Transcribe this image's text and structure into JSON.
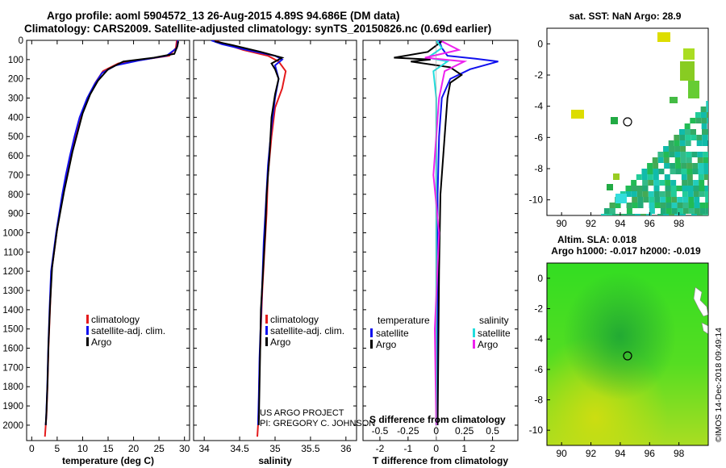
{
  "header": {
    "title_line1": "Argo profile: aoml 5904572_13 26-Aug-2015 4.89S 94.686E (DM data)",
    "title_line2": "Climatology: CARS2009. Satellite-adjusted climatology: synTS_20150826.nc (0.69d earlier)"
  },
  "credits": {
    "project": "US ARGO PROJECT",
    "pi": "PI: GREGORY C. JOHNSON",
    "imos": "©IMOS 14-Dec-2018 09:49:14"
  },
  "colors": {
    "climatology": "#e41a1c",
    "satellite": "#1010ee",
    "argo": "#000000",
    "salinity_satellite": "#22dddd",
    "salinity_argo": "#ee22ee"
  },
  "chart_data": [
    {
      "type": "line",
      "name": "temperature-profile",
      "xlabel": "temperature (deg C)",
      "ylabel": "",
      "xlim": [
        -1,
        31
      ],
      "ylim": [
        2080,
        0
      ],
      "xticks": [
        0,
        5,
        10,
        15,
        20,
        25,
        30
      ],
      "xtick_labels": [
        "0",
        "5",
        "10",
        "15",
        "20",
        "25",
        "30"
      ],
      "yticks": [
        0,
        100,
        200,
        300,
        400,
        500,
        600,
        700,
        800,
        900,
        1000,
        1100,
        1200,
        1300,
        1400,
        1500,
        1600,
        1700,
        1800,
        1900,
        2000
      ],
      "ytick_labels": [
        "0",
        "100",
        "200",
        "300",
        "400",
        "500",
        "600",
        "700",
        "800",
        "900",
        "1000",
        "1100",
        "1200",
        "1300",
        "1400",
        "1500",
        "1600",
        "1700",
        "1800",
        "1900",
        "2000"
      ],
      "legend": [
        "climatology",
        "satellite-adj. clim.",
        "Argo"
      ],
      "series": [
        {
          "name": "climatology",
          "color": "#e41a1c",
          "x": [
            28.5,
            28.3,
            27.0,
            22.0,
            17.0,
            14.0,
            12.5,
            11.0,
            9.5,
            8.5,
            7.6,
            6.8,
            6.1,
            5.5,
            4.9,
            4.4,
            3.9,
            3.6,
            3.3,
            3.1,
            2.9,
            2.75,
            2.6
          ],
          "y": [
            0,
            40,
            80,
            100,
            120,
            160,
            220,
            300,
            400,
            500,
            600,
            700,
            800,
            900,
            1000,
            1100,
            1200,
            1400,
            1600,
            1800,
            1950,
            2000,
            2060
          ]
        },
        {
          "name": "satellite-adj. clim.",
          "color": "#1010ee",
          "x": [
            28.7,
            28.5,
            26.5,
            21.0,
            16.5,
            13.8,
            12.3,
            10.9,
            9.4,
            8.4,
            7.5,
            6.7,
            6.0,
            5.4,
            4.8,
            4.3,
            3.8,
            3.5,
            3.25,
            3.05,
            2.85,
            2.75
          ],
          "y": [
            0,
            40,
            80,
            105,
            130,
            170,
            230,
            300,
            400,
            500,
            600,
            700,
            800,
            900,
            1000,
            1100,
            1200,
            1400,
            1600,
            1800,
            1950,
            2000
          ]
        },
        {
          "name": "Argo",
          "color": "#000000",
          "x": [
            28.8,
            28.6,
            28.0,
            24.0,
            18.0,
            15.0,
            13.0,
            11.5,
            10.0,
            9.0,
            8.0,
            7.2,
            6.4,
            5.7,
            5.0,
            4.5,
            4.0,
            3.6,
            3.3,
            3.1,
            2.9,
            2.75
          ],
          "y": [
            5,
            30,
            70,
            90,
            110,
            150,
            210,
            280,
            380,
            480,
            580,
            680,
            780,
            880,
            980,
            1080,
            1180,
            1380,
            1580,
            1780,
            1930,
            2000
          ]
        }
      ]
    },
    {
      "type": "line",
      "name": "salinity-profile",
      "xlabel": "salinity",
      "xlim": [
        33.85,
        36.15
      ],
      "ylim": [
        2080,
        0
      ],
      "xticks": [
        34,
        34.5,
        35,
        35.5,
        36
      ],
      "xtick_labels": [
        "34",
        "34.5",
        "35",
        "35.5",
        "36"
      ],
      "legend": [
        "climatology",
        "satellite-adj. clim.",
        "Argo"
      ],
      "series": [
        {
          "name": "climatology",
          "color": "#e41a1c",
          "x": [
            34.15,
            34.3,
            34.55,
            34.9,
            35.05,
            35.15,
            35.1,
            35.0,
            34.95,
            34.9,
            34.88,
            34.85,
            34.82,
            34.8,
            34.78,
            34.77,
            34.76,
            34.75
          ],
          "y": [
            0,
            20,
            50,
            80,
            110,
            160,
            250,
            350,
            500,
            700,
            900,
            1100,
            1300,
            1500,
            1700,
            1900,
            2000,
            2060
          ]
        },
        {
          "name": "satellite-adj. clim.",
          "color": "#1010ee",
          "x": [
            34.1,
            34.25,
            34.6,
            35.0,
            35.1,
            35.0,
            35.05,
            35.0,
            34.95,
            34.9,
            34.87,
            34.84,
            34.82,
            34.8,
            34.78,
            34.77,
            34.76
          ],
          "y": [
            0,
            20,
            50,
            80,
            100,
            130,
            200,
            300,
            450,
            650,
            850,
            1050,
            1250,
            1450,
            1650,
            1850,
            2000
          ]
        },
        {
          "name": "Argo",
          "color": "#000000",
          "x": [
            34.15,
            34.4,
            34.8,
            35.1,
            34.95,
            35.0,
            35.05,
            35.0,
            34.95,
            34.92,
            34.88,
            34.86,
            34.83,
            34.8,
            34.79,
            34.78,
            34.77
          ],
          "y": [
            5,
            25,
            60,
            90,
            120,
            150,
            200,
            280,
            400,
            600,
            800,
            1000,
            1200,
            1400,
            1600,
            1800,
            2000
          ]
        }
      ]
    },
    {
      "type": "line",
      "name": "difference-profile",
      "xlabel": "T difference from climatology",
      "xlabel_top": "S difference from climatology",
      "xlim": [
        -2.6,
        2.9
      ],
      "ylim": [
        2080,
        0
      ],
      "xticks": [
        -2,
        -1,
        0,
        1,
        2
      ],
      "xtick_labels": [
        "-2",
        "-1",
        "0",
        "1",
        "2"
      ],
      "top_tick_labels": [
        "-0.5",
        "-0.25",
        "0",
        "0.25",
        "0.5"
      ],
      "top_tick_positions": [
        -2,
        -1,
        0,
        1,
        2
      ],
      "legend_temperature_title": "temperature",
      "legend_salinity_title": "salinity",
      "legend": [
        "satellite",
        "Argo",
        "satellite",
        "Argo"
      ],
      "series": [
        {
          "name": "T satellite",
          "color": "#1010ee",
          "x": [
            0.1,
            0.2,
            0.4,
            1.4,
            2.2,
            1.2,
            0.5,
            0.2,
            0.1,
            0.05,
            0.05,
            0.05,
            0.05
          ],
          "y": [
            0,
            40,
            80,
            95,
            110,
            150,
            200,
            300,
            500,
            800,
            1200,
            1600,
            2000
          ]
        },
        {
          "name": "T Argo",
          "color": "#000000",
          "x": [
            0.2,
            -0.3,
            -1.5,
            -0.2,
            -0.9,
            0.5,
            0.9,
            0.5,
            0.4,
            0.3,
            0.15,
            0.1,
            0.05
          ],
          "y": [
            5,
            60,
            90,
            100,
            110,
            140,
            180,
            220,
            300,
            500,
            800,
            1200,
            2000
          ]
        },
        {
          "name": "S satellite",
          "color": "#22dddd",
          "x": [
            0.0,
            0.2,
            -0.3,
            0.4,
            -0.1,
            0.0,
            0.0,
            0.0,
            0.0
          ],
          "y": [
            0,
            40,
            90,
            110,
            160,
            300,
            700,
            1200,
            2000
          ]
        },
        {
          "name": "S Argo",
          "color": "#ee22ee",
          "x": [
            0.2,
            0.8,
            -0.4,
            1.0,
            0.3,
            0.1,
            -0.1,
            0.1,
            -0.05,
            0.0
          ],
          "y": [
            5,
            50,
            90,
            110,
            160,
            300,
            700,
            1000,
            1500,
            2000
          ]
        }
      ]
    },
    {
      "type": "heatmap",
      "name": "sst-map",
      "title": "sat. SST: NaN Argo: 28.9",
      "xlim": [
        89,
        100
      ],
      "ylim": [
        -11,
        1
      ],
      "xticks": [
        90,
        92,
        94,
        96,
        98
      ],
      "yticks": [
        0,
        -2,
        -4,
        -6,
        -8,
        -10
      ],
      "marker": {
        "lon": 94.686,
        "lat": -4.89
      }
    },
    {
      "type": "heatmap",
      "name": "sla-map",
      "title_line1": "Altim. SLA: 0.018",
      "title_line2": "Argo h1000: -0.017 h2000: -0.019",
      "xlim": [
        89,
        100
      ],
      "ylim": [
        -11,
        1
      ],
      "xticks": [
        90,
        92,
        94,
        96,
        98
      ],
      "yticks": [
        0,
        -2,
        -4,
        -6,
        -8,
        -10
      ],
      "marker": {
        "lon": 94.686,
        "lat": -4.89
      }
    }
  ]
}
